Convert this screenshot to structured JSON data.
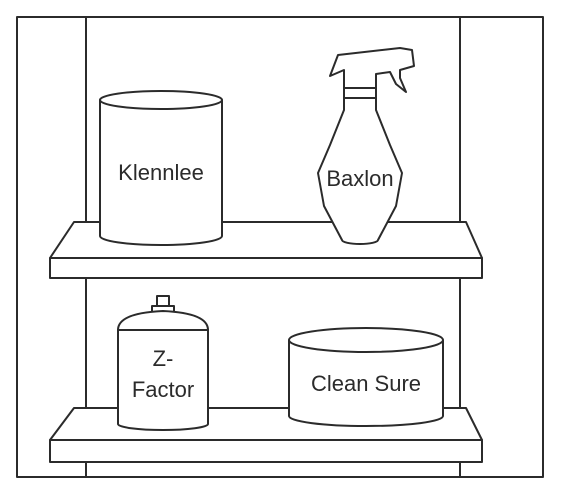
{
  "products": {
    "klennlee": {
      "label": "Klennlee",
      "icon": "paint-can-icon"
    },
    "baxlon": {
      "label": "Baxlon",
      "icon": "spray-bottle-icon"
    },
    "zfactor": {
      "label_line1": "Z-",
      "label_line2": "Factor",
      "icon": "aerosol-can-icon"
    },
    "cleansure": {
      "label": "Clean Sure",
      "icon": "tub-container-icon"
    }
  }
}
